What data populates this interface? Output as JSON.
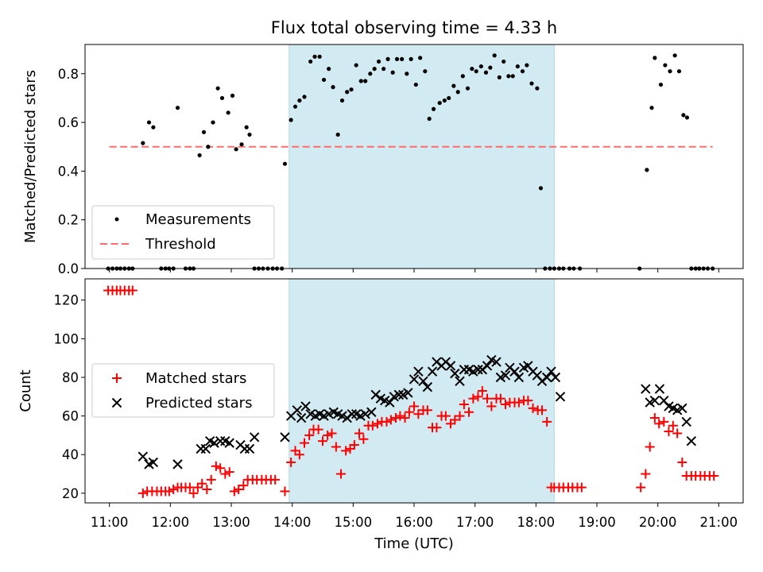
{
  "chart_data": [
    {
      "type": "scatter",
      "title": "Flux total observing time = 4.33 h",
      "ylabel": "Matched/Predicted stars",
      "xlim": [
        10.6,
        21.4
      ],
      "ylim": [
        0,
        0.92
      ],
      "yticks": [
        0.0,
        0.2,
        0.4,
        0.6,
        0.8
      ],
      "ytick_labels": [
        "0.0",
        "0.2",
        "0.4",
        "0.6",
        "0.8"
      ],
      "xticks": [
        11,
        12,
        13,
        14,
        15,
        16,
        17,
        18,
        19,
        20,
        21
      ],
      "shaded_span": [
        13.95,
        18.3
      ],
      "shade_color": "#add8e6",
      "legend": {
        "location": "lower-left",
        "measurements_label": "Measurements",
        "threshold_label": "Threshold"
      },
      "threshold": {
        "value": 0.5,
        "x_range": [
          11.0,
          20.9
        ],
        "color": "#ff6b6b"
      },
      "series": [
        {
          "name": "Measurements",
          "color": "#000000",
          "x": [
            10.98,
            11.05,
            11.12,
            11.18,
            11.25,
            11.32,
            11.38,
            11.55,
            11.65,
            11.72,
            11.85,
            11.92,
            11.98,
            12.05,
            12.12,
            12.25,
            12.32,
            12.38,
            12.48,
            12.55,
            12.62,
            12.7,
            12.78,
            12.85,
            12.95,
            13.02,
            13.08,
            13.17,
            13.25,
            13.3,
            13.38,
            13.45,
            13.52,
            13.6,
            13.68,
            13.75,
            13.83,
            13.88,
            13.98,
            14.05,
            14.12,
            14.2,
            14.3,
            14.37,
            14.45,
            14.52,
            14.6,
            14.67,
            14.75,
            14.82,
            14.9,
            14.97,
            15.05,
            15.13,
            15.2,
            15.28,
            15.35,
            15.42,
            15.5,
            15.57,
            15.65,
            15.72,
            15.8,
            15.88,
            15.95,
            16.03,
            16.1,
            16.18,
            16.25,
            16.32,
            16.42,
            16.5,
            16.57,
            16.65,
            16.72,
            16.8,
            16.88,
            16.95,
            17.02,
            17.1,
            17.18,
            17.25,
            17.32,
            17.4,
            17.47,
            17.55,
            17.62,
            17.7,
            17.78,
            17.85,
            17.93,
            18.02,
            18.08,
            18.15,
            18.23,
            18.3,
            18.38,
            18.45,
            18.55,
            18.62,
            18.72,
            19.7,
            19.82,
            19.9,
            19.95,
            20.05,
            20.12,
            20.2,
            20.28,
            20.35,
            20.42,
            20.48,
            20.55,
            20.62,
            20.68,
            20.75,
            20.82,
            20.9
          ],
          "y": [
            0.0,
            0.0,
            0.0,
            0.0,
            0.0,
            0.0,
            0.0,
            0.515,
            0.6,
            0.58,
            0.0,
            0.0,
            0.0,
            0.0,
            0.66,
            0.0,
            0.0,
            0.0,
            0.465,
            0.56,
            0.5,
            0.6,
            0.74,
            0.7,
            0.64,
            0.71,
            0.49,
            0.51,
            0.58,
            0.55,
            0.0,
            0.0,
            0.0,
            0.0,
            0.0,
            0.0,
            0.0,
            0.43,
            0.61,
            0.665,
            0.69,
            0.705,
            0.85,
            0.87,
            0.87,
            0.775,
            0.82,
            0.745,
            0.55,
            0.69,
            0.725,
            0.735,
            0.835,
            0.77,
            0.77,
            0.8,
            0.82,
            0.85,
            0.82,
            0.86,
            0.805,
            0.86,
            0.86,
            0.8,
            0.86,
            0.755,
            0.865,
            0.81,
            0.615,
            0.655,
            0.68,
            0.69,
            0.7,
            0.75,
            0.725,
            0.79,
            0.74,
            0.82,
            0.81,
            0.83,
            0.805,
            0.825,
            0.875,
            0.785,
            0.85,
            0.79,
            0.79,
            0.83,
            0.81,
            0.835,
            0.76,
            0.74,
            0.33,
            0.0,
            0.0,
            0.0,
            0.0,
            0.0,
            0.0,
            0.0,
            0.0,
            0.0,
            0.405,
            0.66,
            0.865,
            0.755,
            0.835,
            0.81,
            0.875,
            0.81,
            0.63,
            0.62,
            0.0,
            0.0,
            0.0,
            0.0,
            0.0,
            0.0
          ]
        }
      ]
    },
    {
      "type": "scatter",
      "xlabel": "Time (UTC)",
      "ylabel": "Count",
      "xlim": [
        10.6,
        21.4
      ],
      "ylim": [
        15,
        131
      ],
      "yticks": [
        20,
        40,
        60,
        80,
        100,
        120
      ],
      "ytick_labels": [
        "20",
        "40",
        "60",
        "80",
        "100",
        "120"
      ],
      "xticks": [
        11,
        12,
        13,
        14,
        15,
        16,
        17,
        18,
        19,
        20,
        21
      ],
      "xtick_labels": [
        "11:00",
        "12:00",
        "13:00",
        "14:00",
        "15:00",
        "16:00",
        "17:00",
        "18:00",
        "19:00",
        "20:00",
        "21:00"
      ],
      "shaded_span": [
        13.95,
        18.3
      ],
      "shade_color": "#add8e6",
      "legend": {
        "location": "center-left",
        "matched_label": "Matched stars",
        "predicted_label": "Predicted stars"
      },
      "series": [
        {
          "name": "Matched stars",
          "color": "#ff0000",
          "marker": "+",
          "x": [
            10.98,
            11.05,
            11.12,
            11.18,
            11.25,
            11.32,
            11.38,
            11.55,
            11.62,
            11.7,
            11.78,
            11.85,
            11.92,
            11.98,
            12.05,
            12.12,
            12.18,
            12.25,
            12.32,
            12.38,
            12.45,
            12.52,
            12.6,
            12.67,
            12.75,
            12.82,
            12.9,
            12.97,
            13.05,
            13.12,
            13.2,
            13.27,
            13.35,
            13.42,
            13.5,
            13.57,
            13.65,
            13.72,
            13.88,
            13.98,
            14.05,
            14.12,
            14.2,
            14.28,
            14.35,
            14.43,
            14.5,
            14.58,
            14.65,
            14.72,
            14.8,
            14.88,
            14.95,
            15.02,
            15.1,
            15.17,
            15.25,
            15.32,
            15.4,
            15.47,
            15.55,
            15.62,
            15.7,
            15.77,
            15.85,
            15.92,
            16.0,
            16.07,
            16.15,
            16.22,
            16.3,
            16.37,
            16.45,
            16.52,
            16.6,
            16.67,
            16.75,
            16.82,
            16.9,
            16.97,
            17.05,
            17.12,
            17.2,
            17.27,
            17.35,
            17.42,
            17.5,
            17.57,
            17.65,
            17.72,
            17.8,
            17.87,
            17.95,
            18.03,
            18.1,
            18.18,
            18.25,
            18.3,
            18.38,
            18.45,
            18.53,
            18.6,
            18.68,
            18.75,
            19.72,
            19.8,
            19.87,
            19.95,
            20.02,
            20.1,
            20.18,
            20.25,
            20.32,
            20.4,
            20.47,
            20.55,
            20.62,
            20.7,
            20.77,
            20.85,
            20.92
          ],
          "y": [
            125,
            125,
            125,
            125,
            125,
            125,
            125,
            20,
            21,
            21,
            21,
            21,
            21,
            21,
            22,
            23,
            23,
            23,
            23,
            20,
            23,
            25,
            22,
            27,
            34,
            33,
            30,
            31,
            21,
            22,
            24,
            27,
            27,
            27,
            27,
            27,
            27,
            27,
            21,
            36,
            42,
            40,
            46,
            50,
            53,
            53,
            47,
            50,
            51,
            44,
            30,
            42,
            43,
            45,
            51,
            48,
            55,
            55,
            56,
            57,
            57,
            58,
            59,
            60,
            59,
            62,
            65,
            61,
            63,
            63,
            54,
            54,
            60,
            60,
            56,
            58,
            60,
            66,
            62,
            69,
            70,
            73,
            69,
            65,
            69,
            69,
            66,
            67,
            67,
            67,
            68,
            68,
            64,
            63,
            63,
            57,
            23,
            23,
            23,
            23,
            23,
            23,
            23,
            23,
            23,
            30,
            44,
            59,
            56,
            57,
            52,
            55,
            51,
            36,
            29,
            29,
            29,
            29,
            29,
            29,
            29
          ]
        },
        {
          "name": "Predicted stars",
          "color": "#000000",
          "marker": "x",
          "x": [
            11.55,
            11.65,
            11.72,
            12.12,
            12.5,
            12.58,
            12.65,
            12.72,
            12.82,
            12.9,
            12.97,
            13.15,
            13.22,
            13.3,
            13.38,
            13.88,
            13.98,
            14.08,
            14.15,
            14.22,
            14.3,
            14.38,
            14.45,
            14.52,
            14.6,
            14.68,
            14.75,
            14.82,
            14.9,
            14.98,
            15.05,
            15.12,
            15.2,
            15.3,
            15.37,
            15.45,
            15.52,
            15.6,
            15.67,
            15.75,
            15.82,
            15.9,
            16.0,
            16.07,
            16.15,
            16.22,
            16.3,
            16.37,
            16.45,
            16.52,
            16.6,
            16.67,
            16.75,
            16.82,
            16.9,
            16.97,
            17.05,
            17.12,
            17.2,
            17.27,
            17.35,
            17.42,
            17.5,
            17.57,
            17.65,
            17.72,
            17.8,
            17.87,
            17.95,
            18.02,
            18.1,
            18.18,
            18.25,
            18.32,
            18.4,
            19.8,
            19.87,
            19.95,
            20.03,
            20.1,
            20.18,
            20.25,
            20.32,
            20.4,
            20.47,
            20.55
          ],
          "y": [
            39,
            35,
            36,
            35,
            43,
            43,
            47,
            46,
            47,
            47,
            46,
            45,
            43,
            43,
            49,
            49,
            60,
            63,
            59,
            65,
            61,
            60,
            61,
            60,
            61,
            62,
            61,
            60,
            59,
            61,
            61,
            60,
            61,
            62,
            71,
            69,
            68,
            67,
            70,
            71,
            71,
            72,
            79,
            83,
            78,
            75,
            83,
            88,
            86,
            88,
            86,
            82,
            78,
            84,
            84,
            83,
            84,
            84,
            86,
            89,
            88,
            80,
            81,
            85,
            83,
            80,
            85,
            86,
            83,
            81,
            78,
            80,
            83,
            80,
            70,
            74,
            67,
            68,
            74,
            68,
            65,
            64,
            63,
            64,
            57,
            47
          ]
        }
      ]
    }
  ]
}
